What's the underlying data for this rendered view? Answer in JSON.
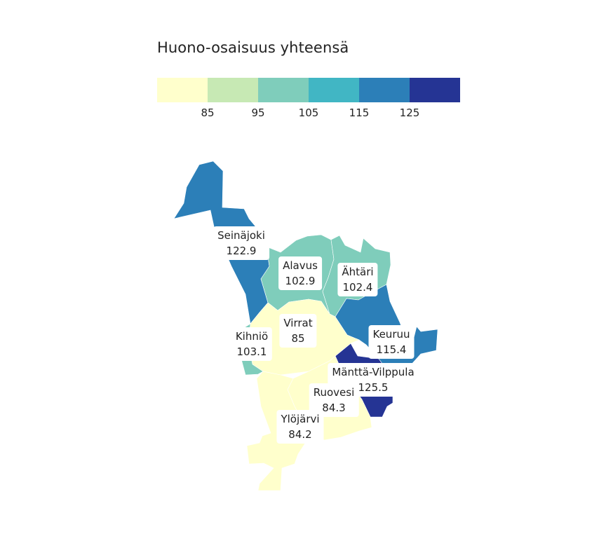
{
  "legend": {
    "title": "Huono-osaisuus yhteensä",
    "colors": [
      "#ffffcc",
      "#c7e9b4",
      "#7fcdbb",
      "#41b6c4",
      "#2c7fb8",
      "#253494"
    ],
    "ticks": [
      "85",
      "95",
      "105",
      "115",
      "125"
    ]
  },
  "regions": [
    {
      "id": "seinajoki",
      "name": "Seinäjoki",
      "value": "122.9",
      "color": "#2c7fb8"
    },
    {
      "id": "alavus",
      "name": "Alavus",
      "value": "102.9",
      "color": "#7fcdbb"
    },
    {
      "id": "ahtari",
      "name": "Ähtäri",
      "value": "102.4",
      "color": "#7fcdbb"
    },
    {
      "id": "virrat",
      "name": "Virrat",
      "value": "85",
      "color": "#ffffcc"
    },
    {
      "id": "kihnio",
      "name": "Kihniö",
      "value": "103.1",
      "color": "#7fcdbb"
    },
    {
      "id": "keuruu",
      "name": "Keuruu",
      "value": "115.4",
      "color": "#2c7fb8"
    },
    {
      "id": "mantta",
      "name": "Mänttä-Vilppula",
      "value": "125.5",
      "color": "#253494"
    },
    {
      "id": "ruovesi",
      "name": "Ruovesi",
      "value": "84.3",
      "color": "#ffffcc"
    },
    {
      "id": "ylojarvi",
      "name": "Ylöjärvi",
      "value": "84.2",
      "color": "#ffffcc"
    }
  ]
}
